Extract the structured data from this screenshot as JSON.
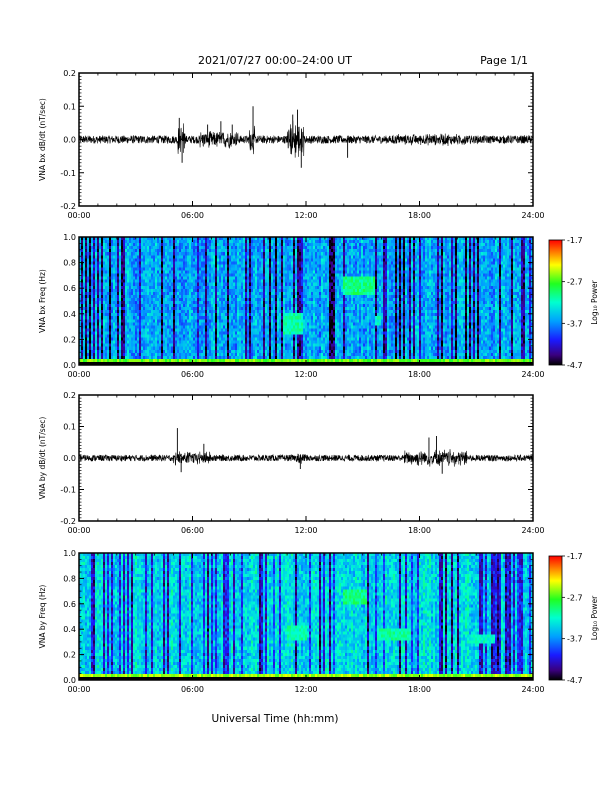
{
  "header": {
    "date_range": "2021/07/27  00:00–24:00 UT",
    "page": "Page 1/1"
  },
  "x_axis": {
    "label": "Universal Time (hh:mm)",
    "ticks": [
      "00:00",
      "06:00",
      "12:00",
      "18:00",
      "24:00"
    ]
  },
  "chart_data": [
    {
      "type": "line",
      "ylabel": "VNA bx dB/dt (nT/sec)",
      "xlim": [
        0,
        24
      ],
      "ylim": [
        -0.2,
        0.2
      ],
      "yticks": [
        "0.2",
        "0.1",
        "0.0",
        "-0.1",
        "-0.2"
      ],
      "x_unit": "hours UT",
      "baseline": 0.0,
      "noise_amplitude": 0.012,
      "activity": [
        {
          "start": 5.2,
          "end": 5.6,
          "amplitude": 0.055
        },
        {
          "start": 6.4,
          "end": 8.4,
          "amplitude": 0.03
        },
        {
          "start": 9.0,
          "end": 9.3,
          "amplitude": 0.05
        },
        {
          "start": 11.0,
          "end": 11.9,
          "amplitude": 0.065
        },
        {
          "start": 16.5,
          "end": 20.5,
          "amplitude": 0.02
        }
      ],
      "spikes": [
        {
          "x": 5.3,
          "y": 0.065
        },
        {
          "x": 5.45,
          "y": -0.07
        },
        {
          "x": 6.8,
          "y": 0.045
        },
        {
          "x": 7.5,
          "y": 0.055
        },
        {
          "x": 8.1,
          "y": 0.045
        },
        {
          "x": 9.2,
          "y": 0.1
        },
        {
          "x": 11.3,
          "y": 0.075
        },
        {
          "x": 11.55,
          "y": 0.09
        },
        {
          "x": 11.75,
          "y": -0.085
        },
        {
          "x": 14.2,
          "y": -0.055
        }
      ]
    },
    {
      "type": "heatmap",
      "ylabel": "VNA bx Freq (Hz)",
      "xlim": [
        0,
        24
      ],
      "ylim": [
        0.0,
        1.0
      ],
      "yticks": [
        "1.0",
        "0.8",
        "0.6",
        "0.4",
        "0.2",
        "0.0"
      ],
      "colorbar": {
        "label": "Log₁₀ Power",
        "ticks": [
          "-1.7",
          "-2.7",
          "-3.7",
          "-4.7"
        ],
        "range": [
          -4.7,
          -1.7
        ]
      },
      "background_level": -3.6,
      "features": [
        {
          "x_start": 14.0,
          "x_end": 15.6,
          "f_low": 0.55,
          "f_high": 0.68,
          "level": -3.0
        },
        {
          "x_start": 10.8,
          "x_end": 11.8,
          "f_low": 0.25,
          "f_high": 0.4,
          "level": -3.1
        },
        {
          "x_start": 15.6,
          "x_end": 16.0,
          "f_low": 0.3,
          "f_high": 0.37,
          "level": -3.2
        },
        {
          "x_start": 0.0,
          "x_end": 24.0,
          "f_low": 0.0,
          "f_high": 0.05,
          "level": -2.6
        }
      ]
    },
    {
      "type": "line",
      "ylabel": "VNA by dB/dt (nT/sec)",
      "xlim": [
        0,
        24
      ],
      "ylim": [
        -0.2,
        0.2
      ],
      "yticks": [
        "0.2",
        "0.1",
        "0.0",
        "-0.1",
        "-0.2"
      ],
      "x_unit": "hours UT",
      "baseline": 0.0,
      "noise_amplitude": 0.01,
      "activity": [
        {
          "start": 5.0,
          "end": 7.0,
          "amplitude": 0.025
        },
        {
          "start": 11.5,
          "end": 12.0,
          "amplitude": 0.02
        },
        {
          "start": 17.2,
          "end": 20.5,
          "amplitude": 0.03
        }
      ],
      "spikes": [
        {
          "x": 5.2,
          "y": 0.095
        },
        {
          "x": 5.4,
          "y": -0.045
        },
        {
          "x": 6.6,
          "y": 0.045
        },
        {
          "x": 11.7,
          "y": -0.035
        },
        {
          "x": 18.5,
          "y": 0.065
        },
        {
          "x": 18.9,
          "y": 0.07
        },
        {
          "x": 19.2,
          "y": -0.05
        }
      ]
    },
    {
      "type": "heatmap",
      "ylabel": "VNA by Freq (Hz)",
      "xlim": [
        0,
        24
      ],
      "ylim": [
        0.0,
        1.0
      ],
      "yticks": [
        "1.0",
        "0.8",
        "0.6",
        "0.4",
        "0.2",
        "0.0"
      ],
      "colorbar": {
        "label": "Log₁₀ Power",
        "ticks": [
          "-1.7",
          "-2.7",
          "-3.7",
          "-4.7"
        ],
        "range": [
          -4.7,
          -1.7
        ]
      },
      "background_level": -3.4,
      "features": [
        {
          "x_start": 14.0,
          "x_end": 15.2,
          "f_low": 0.6,
          "f_high": 0.72,
          "level": -3.0
        },
        {
          "x_start": 11.0,
          "x_end": 12.0,
          "f_low": 0.32,
          "f_high": 0.42,
          "level": -3.1
        },
        {
          "x_start": 15.8,
          "x_end": 17.5,
          "f_low": 0.32,
          "f_high": 0.4,
          "level": -3.1
        },
        {
          "x_start": 20.5,
          "x_end": 22.0,
          "f_low": 0.28,
          "f_high": 0.36,
          "level": -3.2
        },
        {
          "x_start": 0.0,
          "x_end": 24.0,
          "f_low": 0.0,
          "f_high": 0.05,
          "level": -2.5
        }
      ]
    }
  ]
}
